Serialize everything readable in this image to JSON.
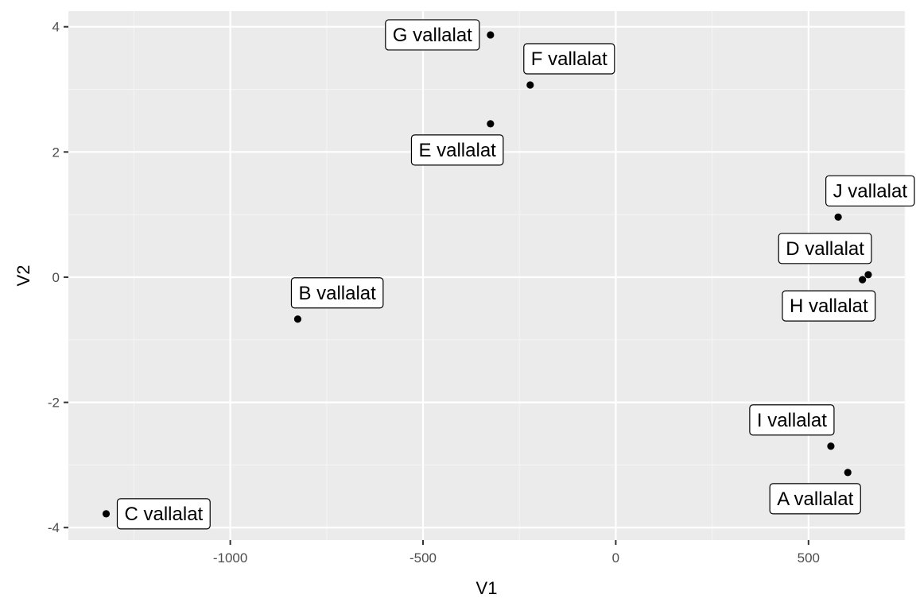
{
  "chart_data": {
    "type": "scatter",
    "title": "",
    "xlabel": "V1",
    "ylabel": "V2",
    "xlim": [
      -1420,
      750
    ],
    "ylim": [
      -4.2,
      4.25
    ],
    "x_ticks": [
      -1000,
      -500,
      0,
      500
    ],
    "x_tick_labels": [
      "-1000",
      "-500",
      "0",
      "500"
    ],
    "y_ticks": [
      -4,
      -2,
      0,
      2,
      4
    ],
    "y_tick_labels": [
      "-4",
      "-2",
      "0",
      "2",
      "4"
    ],
    "grid": true,
    "points": [
      {
        "label": "A vallalat",
        "x": 602,
        "y": -3.12,
        "label_pos": "below-left"
      },
      {
        "label": "B vallalat",
        "x": -825,
        "y": -0.67,
        "label_pos": "above-right"
      },
      {
        "label": "C vallalat",
        "x": -1322,
        "y": -3.78,
        "label_pos": "right"
      },
      {
        "label": "D vallalat",
        "x": 655,
        "y": 0.04,
        "label_pos": "above-left"
      },
      {
        "label": "E vallalat",
        "x": -325,
        "y": 2.45,
        "label_pos": "below-left"
      },
      {
        "label": "F vallalat",
        "x": -222,
        "y": 3.07,
        "label_pos": "above-right"
      },
      {
        "label": "G vallalat",
        "x": -325,
        "y": 3.87,
        "label_pos": "left"
      },
      {
        "label": "H vallalat",
        "x": 640,
        "y": -0.04,
        "label_pos": "below-left"
      },
      {
        "label": "I vallalat",
        "x": 558,
        "y": -2.7,
        "label_pos": "above-left"
      },
      {
        "label": "J vallalat",
        "x": 577,
        "y": 0.96,
        "label_pos": "above-right"
      }
    ]
  },
  "colors": {
    "panel_background": "#ebebeb",
    "grid_major": "#ffffff",
    "grid_minor": "#f5f5f5",
    "point": "#000000",
    "label_fill": "#ffffff",
    "label_border": "#000000"
  }
}
